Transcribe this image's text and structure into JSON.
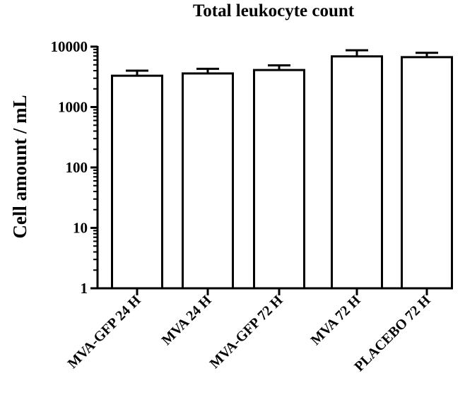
{
  "chart_data": {
    "type": "bar",
    "title": "Total leukocyte count",
    "xlabel": "",
    "ylabel": "Cell amount / mL",
    "y_scale": "log",
    "ylim": [
      1,
      10000
    ],
    "y_ticks": [
      1,
      10,
      100,
      1000,
      10000
    ],
    "y_tick_labels": [
      "1",
      "10",
      "100",
      "1000",
      "10000"
    ],
    "categories": [
      "MVA-GFP 24 H",
      "MVA 24 H",
      "MVA-GFP 72 H",
      "MVA 72 H",
      "PLACEBO 72 H"
    ],
    "values": [
      3300,
      3600,
      4100,
      6900,
      6700
    ],
    "error_upper": [
      4000,
      4300,
      4900,
      8700,
      7900
    ],
    "bar_fill": "#ffffff",
    "bar_stroke": "#000000",
    "grid": false,
    "legend": "none"
  }
}
